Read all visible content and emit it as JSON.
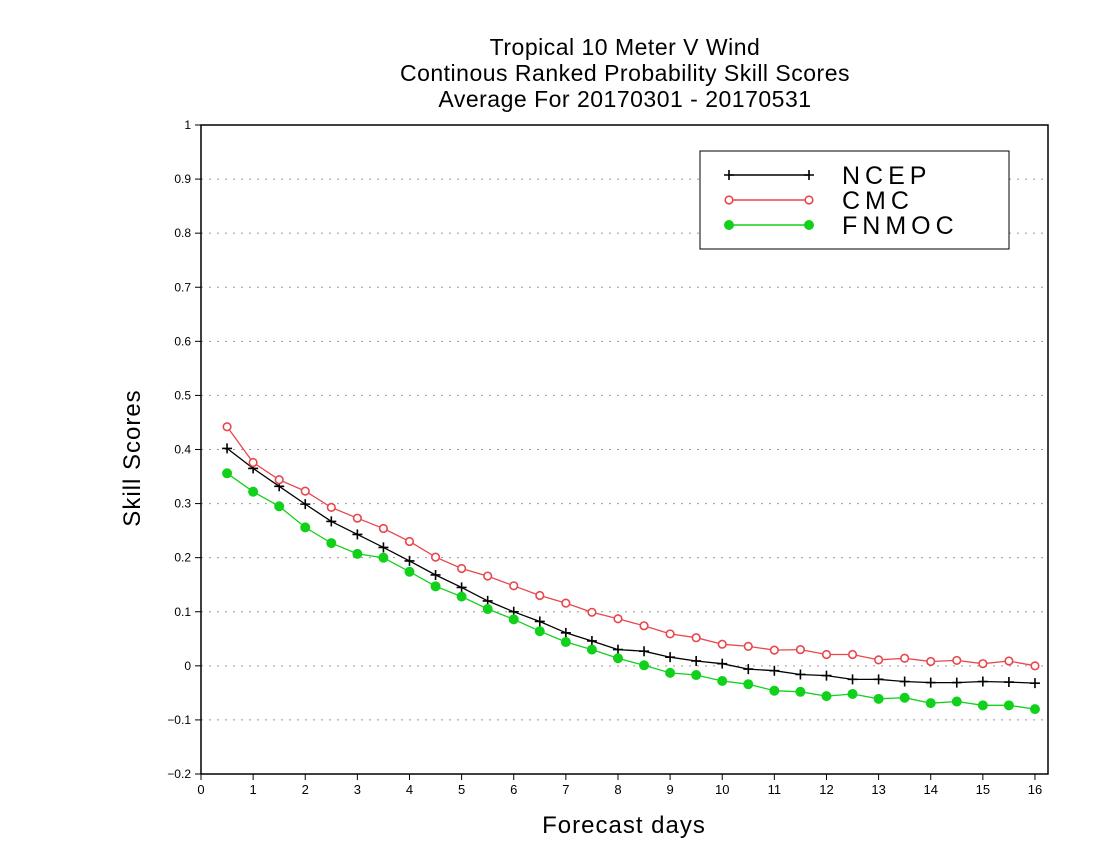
{
  "chart_data": {
    "type": "line",
    "title": [
      "Tropical 10 Meter V Wind",
      "Continous Ranked Probability Skill Scores",
      "Average For 20170301 - 20170531"
    ],
    "xlabel": "Forecast days",
    "ylabel": "Skill Scores",
    "xlim": [
      0,
      16.25
    ],
    "ylim": [
      -0.2,
      1
    ],
    "xticks": [
      0,
      1,
      2,
      3,
      4,
      5,
      6,
      7,
      8,
      9,
      10,
      11,
      12,
      13,
      14,
      15,
      16
    ],
    "yticks": [
      -0.2,
      -0.1,
      0,
      0.1,
      0.2,
      0.3,
      0.4,
      0.5,
      0.6,
      0.7,
      0.8,
      0.9,
      1
    ],
    "ytick_labels": [
      "−0.2",
      "−0.1",
      "0",
      "0.1",
      "0.2",
      "0.3",
      "0.4",
      "0.5",
      "0.6",
      "0.7",
      "0.8",
      "0.9",
      "1"
    ],
    "grid": "horizontal dotted",
    "legend_position": "top-right",
    "x": [
      0.5,
      1,
      1.5,
      2,
      2.5,
      3,
      3.5,
      4,
      4.5,
      5,
      5.5,
      6,
      6.5,
      7,
      7.5,
      8,
      8.5,
      9,
      9.5,
      10,
      10.5,
      11,
      11.5,
      12,
      12.5,
      13,
      13.5,
      14,
      14.5,
      15,
      15.5,
      16
    ],
    "series": [
      {
        "name": "NCEP",
        "color": "#000000",
        "marker": "plus",
        "values": [
          0.402,
          0.365,
          0.332,
          0.299,
          0.267,
          0.243,
          0.219,
          0.194,
          0.168,
          0.145,
          0.12,
          0.1,
          0.082,
          0.061,
          0.046,
          0.03,
          0.027,
          0.016,
          0.009,
          0.004,
          -0.006,
          -0.009,
          -0.016,
          -0.018,
          -0.025,
          -0.025,
          -0.029,
          -0.031,
          -0.031,
          -0.029,
          -0.03,
          -0.032
        ]
      },
      {
        "name": "CMC",
        "color": "#e8474c",
        "marker": "open-circle",
        "values": [
          0.442,
          0.376,
          0.344,
          0.323,
          0.293,
          0.273,
          0.254,
          0.23,
          0.201,
          0.18,
          0.166,
          0.148,
          0.13,
          0.116,
          0.099,
          0.087,
          0.074,
          0.059,
          0.052,
          0.04,
          0.036,
          0.029,
          0.03,
          0.021,
          0.021,
          0.011,
          0.014,
          0.008,
          0.01,
          0.004,
          0.009,
          0.0
        ]
      },
      {
        "name": "FNMOC",
        "color": "#11d11b",
        "marker": "filled-circle",
        "values": [
          0.356,
          0.322,
          0.295,
          0.256,
          0.227,
          0.207,
          0.2,
          0.174,
          0.147,
          0.128,
          0.105,
          0.086,
          0.064,
          0.044,
          0.03,
          0.014,
          0.001,
          -0.013,
          -0.017,
          -0.028,
          -0.034,
          -0.046,
          -0.048,
          -0.056,
          -0.052,
          -0.061,
          -0.059,
          -0.069,
          -0.066,
          -0.073,
          -0.073,
          -0.08
        ]
      }
    ]
  }
}
